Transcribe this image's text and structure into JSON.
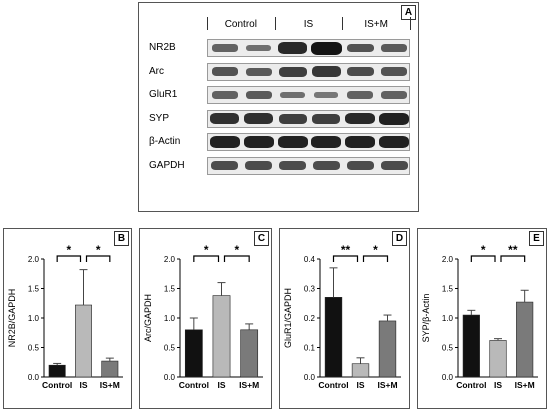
{
  "blot": {
    "letter": "A",
    "groups": [
      "Control",
      "IS",
      "IS+M"
    ],
    "rows": [
      {
        "label": "NR2B",
        "intensity": [
          0.45,
          0.35,
          0.85,
          1.0,
          0.55,
          0.5
        ]
      },
      {
        "label": "Arc",
        "intensity": [
          0.55,
          0.5,
          0.7,
          0.75,
          0.6,
          0.55
        ]
      },
      {
        "label": "GluR1",
        "intensity": [
          0.45,
          0.5,
          0.35,
          0.3,
          0.45,
          0.45
        ]
      },
      {
        "label": "SYP",
        "intensity": [
          0.8,
          0.8,
          0.7,
          0.7,
          0.85,
          0.9
        ]
      },
      {
        "label": "β-Actin",
        "intensity": [
          0.9,
          0.9,
          0.9,
          0.9,
          0.9,
          0.9
        ]
      },
      {
        "label": "GAPDH",
        "intensity": [
          0.6,
          0.6,
          0.6,
          0.6,
          0.6,
          0.6
        ]
      }
    ]
  },
  "chart_data": [
    {
      "letter": "B",
      "type": "bar",
      "ylabel": "NR2B/GAPDH",
      "ylim": [
        0,
        2.0
      ],
      "ticks": [
        0.0,
        0.5,
        1.0,
        1.5,
        2.0
      ],
      "tick_labels": [
        "0.0",
        "0.5",
        "1.0",
        "1.5",
        "2.0"
      ],
      "categories": [
        "Control",
        "IS",
        "IS+M"
      ],
      "values": [
        0.2,
        1.22,
        0.27
      ],
      "errors": [
        0.03,
        0.6,
        0.05
      ],
      "colors": [
        "#111111",
        "#b9b9b9",
        "#7a7a7a"
      ],
      "brackets": [
        {
          "from": 0,
          "to": 1,
          "label": "*"
        },
        {
          "from": 1,
          "to": 2,
          "label": "*"
        }
      ]
    },
    {
      "letter": "C",
      "type": "bar",
      "ylabel": "Arc/GAPDH",
      "ylim": [
        0,
        2.0
      ],
      "ticks": [
        0.0,
        0.5,
        1.0,
        1.5,
        2.0
      ],
      "tick_labels": [
        "0.0",
        "0.5",
        "1.0",
        "1.5",
        "2.0"
      ],
      "categories": [
        "Control",
        "IS",
        "IS+M"
      ],
      "values": [
        0.8,
        1.38,
        0.8
      ],
      "errors": [
        0.2,
        0.22,
        0.1
      ],
      "colors": [
        "#111111",
        "#b9b9b9",
        "#7a7a7a"
      ],
      "brackets": [
        {
          "from": 0,
          "to": 1,
          "label": "*"
        },
        {
          "from": 1,
          "to": 2,
          "label": "*"
        }
      ]
    },
    {
      "letter": "D",
      "type": "bar",
      "ylabel": "GluR1/GAPDH",
      "ylim": [
        0,
        0.4
      ],
      "ticks": [
        0.0,
        0.1,
        0.2,
        0.3,
        0.4
      ],
      "tick_labels": [
        "0.0",
        "0.1",
        "0.2",
        "0.3",
        "0.4"
      ],
      "categories": [
        "Control",
        "IS",
        "IS+M"
      ],
      "values": [
        0.27,
        0.045,
        0.19
      ],
      "errors": [
        0.1,
        0.02,
        0.02
      ],
      "colors": [
        "#111111",
        "#b9b9b9",
        "#7a7a7a"
      ],
      "brackets": [
        {
          "from": 0,
          "to": 1,
          "label": "**"
        },
        {
          "from": 1,
          "to": 2,
          "label": "*"
        }
      ]
    },
    {
      "letter": "E",
      "type": "bar",
      "ylabel": "SYP/β-Actin",
      "ylim": [
        0,
        2.0
      ],
      "ticks": [
        0.0,
        0.5,
        1.0,
        1.5,
        2.0
      ],
      "tick_labels": [
        "0.0",
        "0.5",
        "1.0",
        "1.5",
        "2.0"
      ],
      "categories": [
        "Control",
        "IS",
        "IS+M"
      ],
      "values": [
        1.05,
        0.62,
        1.27
      ],
      "errors": [
        0.08,
        0.03,
        0.2
      ],
      "colors": [
        "#111111",
        "#b9b9b9",
        "#7a7a7a"
      ],
      "brackets": [
        {
          "from": 0,
          "to": 1,
          "label": "*"
        },
        {
          "from": 1,
          "to": 2,
          "label": "**"
        }
      ]
    }
  ]
}
